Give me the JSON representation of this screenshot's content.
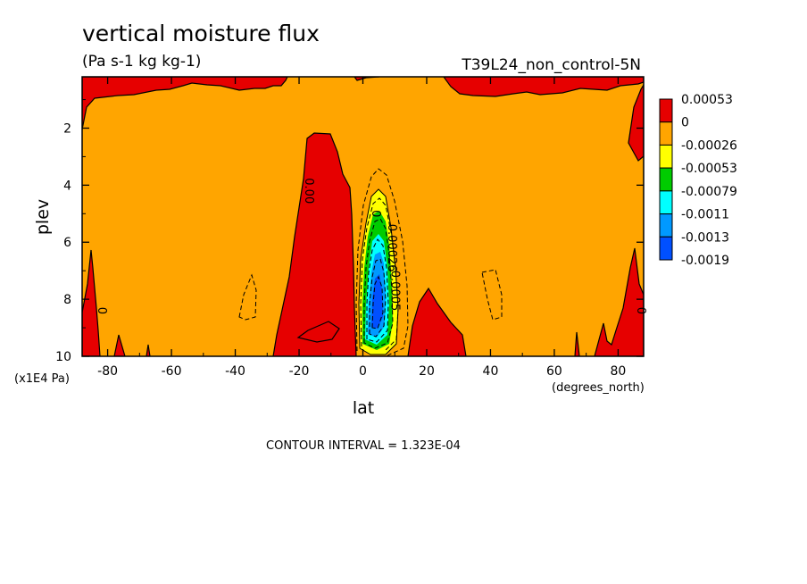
{
  "chart_data": {
    "type": "heatmap",
    "title": "vertical moisture flux",
    "units": "(Pa s-1 kg kg-1)",
    "run_label": "T39L24_non_control-5N",
    "xlabel": "lat",
    "xunits": "(degrees_north)",
    "ylabel": "plev",
    "yunits": "(x1E4 Pa)",
    "xlim": [
      -88,
      88
    ],
    "ylim": [
      0.2,
      10
    ],
    "y_inverted": true,
    "x_ticks": [
      -80,
      -60,
      -40,
      -20,
      0,
      20,
      40,
      60,
      80
    ],
    "x_tick_labels": [
      "-80",
      "-60",
      "-40",
      "-20",
      "0",
      "20",
      "40",
      "60",
      "80"
    ],
    "y_ticks": [
      2,
      4,
      6,
      8,
      10
    ],
    "y_tick_labels": [
      "2",
      "4",
      "6",
      "8",
      "10"
    ],
    "contour_interval_text": "CONTOUR INTERVAL = 1.323E-04",
    "contour_labels": [
      {
        "text": "0.00",
        "lat": -18,
        "plev": 4.2
      },
      {
        "text": "0",
        "lat": -83,
        "plev": 8.4
      },
      {
        "text": "0",
        "lat": 86,
        "plev": 8.4
      },
      {
        "text": "0",
        "lat": 3,
        "plev": 5.0
      },
      {
        "text": "0.00026",
        "lat": 8,
        "plev": 6.2
      },
      {
        "text": "0.0005",
        "lat": 9,
        "plev": 7.7
      }
    ],
    "legend": {
      "placement": "right",
      "colors": [
        "#e60000",
        "#ffa500",
        "#ffff00",
        "#00cc00",
        "#00ffff",
        "#0099ff",
        "#0050ff"
      ],
      "labels": [
        "0.00053",
        "0",
        "-0.00026",
        "-0.00053",
        "-0.00079",
        "-0.0011",
        "-0.0013",
        "-0.0019"
      ]
    }
  }
}
